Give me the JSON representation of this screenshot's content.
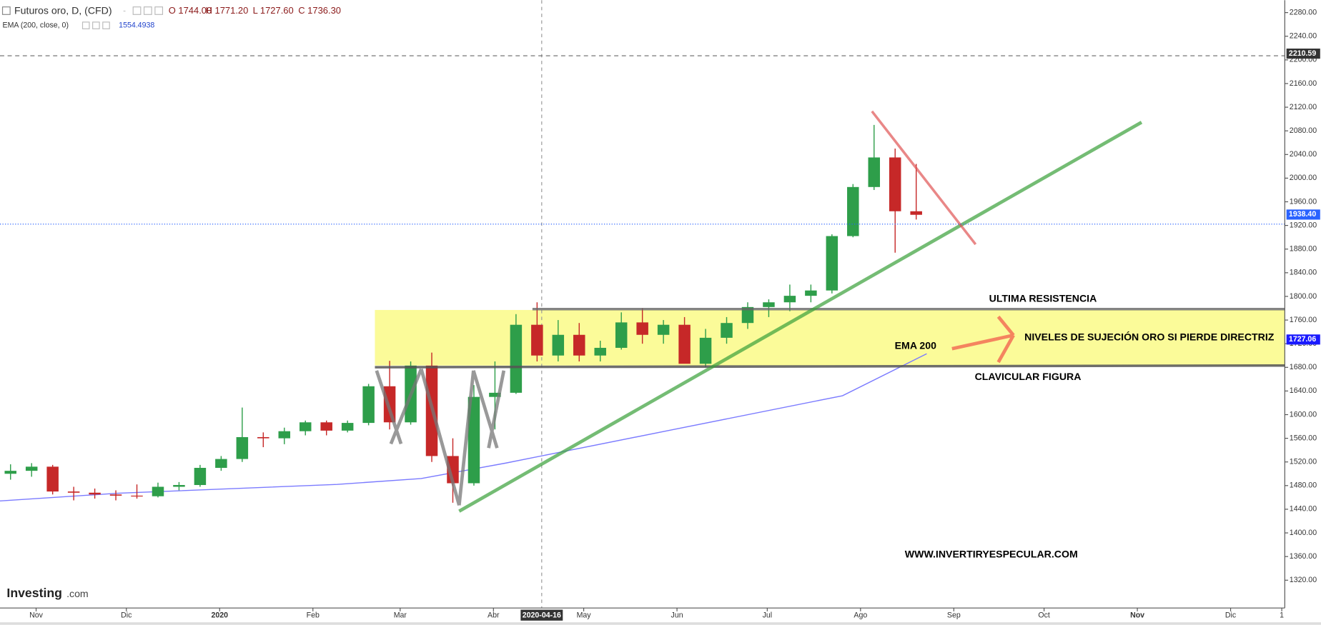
{
  "chart_data": {
    "type": "candlestick",
    "title": "Futuros oro, D, (CFD)",
    "ohlc_labels": [
      "O 1744.00",
      "H 1771.20",
      "L 1727.60",
      "C 1736.30"
    ],
    "indicator": "EMA (200, close, 0)",
    "indicator_value": "1554.4938",
    "brand": "Investing",
    "brand_suffix": ".com",
    "crosshair_date": "2020-04-16",
    "annotations": [
      "ULTIMA RESISTENCIA",
      "NIVELES DE SUJECIÓN ORO SI PIERDE DIRECTRIZ",
      "EMA 200",
      "CLAVICULAR FIGURA",
      "WWW.INVERTIRYESPECULAR.COM"
    ],
    "xlim": [
      0,
      427
    ],
    "xticks": [
      {
        "value": 12,
        "label": "Nov"
      },
      {
        "value": 42,
        "label": "Dic"
      },
      {
        "value": 73,
        "label": "2020"
      },
      {
        "value": 104,
        "label": "Feb"
      },
      {
        "value": 133,
        "label": "Mar"
      },
      {
        "value": 164,
        "label": "Abr"
      },
      {
        "value": 194,
        "label": "May"
      },
      {
        "value": 225,
        "label": "Jun"
      },
      {
        "value": 255,
        "label": "Jul"
      },
      {
        "value": 286,
        "label": "Ago"
      },
      {
        "value": 317,
        "label": "Sep"
      },
      {
        "value": 347,
        "label": "Oct"
      },
      {
        "value": 378,
        "label": "Nov"
      },
      {
        "value": 409,
        "label": "Dic"
      },
      {
        "value": 426,
        "label": "1"
      }
    ],
    "ylim": [
      1273,
      2301
    ],
    "yticks": [
      {
        "value": 1320,
        "label": "1320.00"
      },
      {
        "value": 1360,
        "label": "1360.00"
      },
      {
        "value": 1400,
        "label": "1400.00"
      },
      {
        "value": 1440,
        "label": "1440.00"
      },
      {
        "value": 1480,
        "label": "1480.00"
      },
      {
        "value": 1520,
        "label": "1520.00"
      },
      {
        "value": 1560,
        "label": "1560.00"
      },
      {
        "value": 1600,
        "label": "1600.00"
      },
      {
        "value": 1640,
        "label": "1640.00"
      },
      {
        "value": 1680,
        "label": "1680.00"
      },
      {
        "value": 1720,
        "label": "1720.00"
      },
      {
        "value": 1760,
        "label": "1760.00"
      },
      {
        "value": 1800,
        "label": "1800.00"
      },
      {
        "value": 1840,
        "label": "1840.00"
      },
      {
        "value": 1880,
        "label": "1880.00"
      },
      {
        "value": 1920,
        "label": "1920.00"
      },
      {
        "value": 1960,
        "label": "1960.00"
      },
      {
        "value": 2000,
        "label": "2000.00"
      },
      {
        "value": 2040,
        "label": "2040.00"
      },
      {
        "value": 2080,
        "label": "2080.00"
      },
      {
        "value": 2120,
        "label": "2120.00"
      },
      {
        "value": 2160,
        "label": "2160.00"
      },
      {
        "value": 2200,
        "label": "2200.00"
      },
      {
        "value": 2240,
        "label": "2240.00"
      },
      {
        "value": 2280,
        "label": "2280.00"
      }
    ],
    "price_tags": [
      {
        "value": 2210.59,
        "color": "#333333"
      },
      {
        "value": {
          "value": 1938.4,
          "label": "1938.40"
        },
        "color": "#2962ff"
      },
      {
        "value": 1727.06,
        "color": "#1a1aff"
      }
    ],
    "up_color": "#2e9e4a",
    "down_color": "#c62828",
    "x": [
      3.5,
      10.5,
      17.5,
      24.5,
      31.5,
      38.5,
      45.5,
      52.5,
      59.5,
      66.5,
      73.5,
      80.5,
      87.5,
      94.5,
      101.5,
      108.5,
      115.5,
      122.5,
      129.5,
      136.5,
      143.5,
      150.5,
      157.5,
      164.5,
      171.5,
      178.5,
      185.5,
      192.5,
      199.5,
      206.5,
      213.5,
      220.5,
      227.5,
      234.5,
      241.5,
      248.5,
      255.5,
      262.5,
      269.5,
      276.5,
      283.5,
      290.5,
      297.5,
      304.5
    ],
    "open": [
      1500,
      1505,
      1512,
      1470,
      1468,
      1465,
      1463,
      1462,
      1478,
      1481,
      1510,
      1525,
      1562,
      1560,
      1572,
      1587,
      1573,
      1586,
      1648,
      1587,
      1683,
      1530,
      1484,
      1630,
      1637,
      1752,
      1700,
      1735,
      1700,
      1713,
      1756,
      1735,
      1752,
      1686,
      1730,
      1755,
      1782,
      1790,
      1801,
      1810,
      1902,
      1985,
      2035,
      1944
    ],
    "high": [
      1516,
      1518,
      1515,
      1478,
      1475,
      1472,
      1482,
      1485,
      1486,
      1515,
      1530,
      1612,
      1570,
      1578,
      1590,
      1590,
      1590,
      1652,
      1691,
      1690,
      1705,
      1560,
      1650,
      1690,
      1770,
      1790,
      1760,
      1755,
      1725,
      1773,
      1780,
      1760,
      1765,
      1745,
      1765,
      1790,
      1795,
      1820,
      1820,
      1905,
      1990,
      2090,
      2050,
      2024
    ],
    "low": [
      1490,
      1495,
      1465,
      1455,
      1458,
      1455,
      1458,
      1460,
      1472,
      1478,
      1505,
      1520,
      1545,
      1550,
      1565,
      1565,
      1570,
      1582,
      1575,
      1583,
      1520,
      1451,
      1480,
      1575,
      1635,
      1690,
      1690,
      1690,
      1690,
      1710,
      1720,
      1720,
      1690,
      1680,
      1720,
      1745,
      1765,
      1775,
      1790,
      1805,
      1900,
      1980,
      1874,
      1930
    ],
    "close": [
      1505,
      1512,
      1470,
      1468,
      1465,
      1463,
      1462,
      1478,
      1481,
      1510,
      1525,
      1562,
      1560,
      1572,
      1587,
      1573,
      1586,
      1648,
      1587,
      1683,
      1530,
      1484,
      1630,
      1637,
      1752,
      1700,
      1735,
      1700,
      1713,
      1756,
      1735,
      1752,
      1686,
      1730,
      1755,
      1782,
      1790,
      1801,
      1810,
      1902,
      1985,
      2035,
      1944,
      1938
    ],
    "ema": {
      "color": "#7b7bff",
      "x": [
        0,
        39,
        112,
        140,
        168,
        224,
        280,
        308
      ],
      "values": [
        1454,
        1467,
        1482,
        1492,
        1518,
        1575,
        1632,
        1703
      ]
    }
  }
}
